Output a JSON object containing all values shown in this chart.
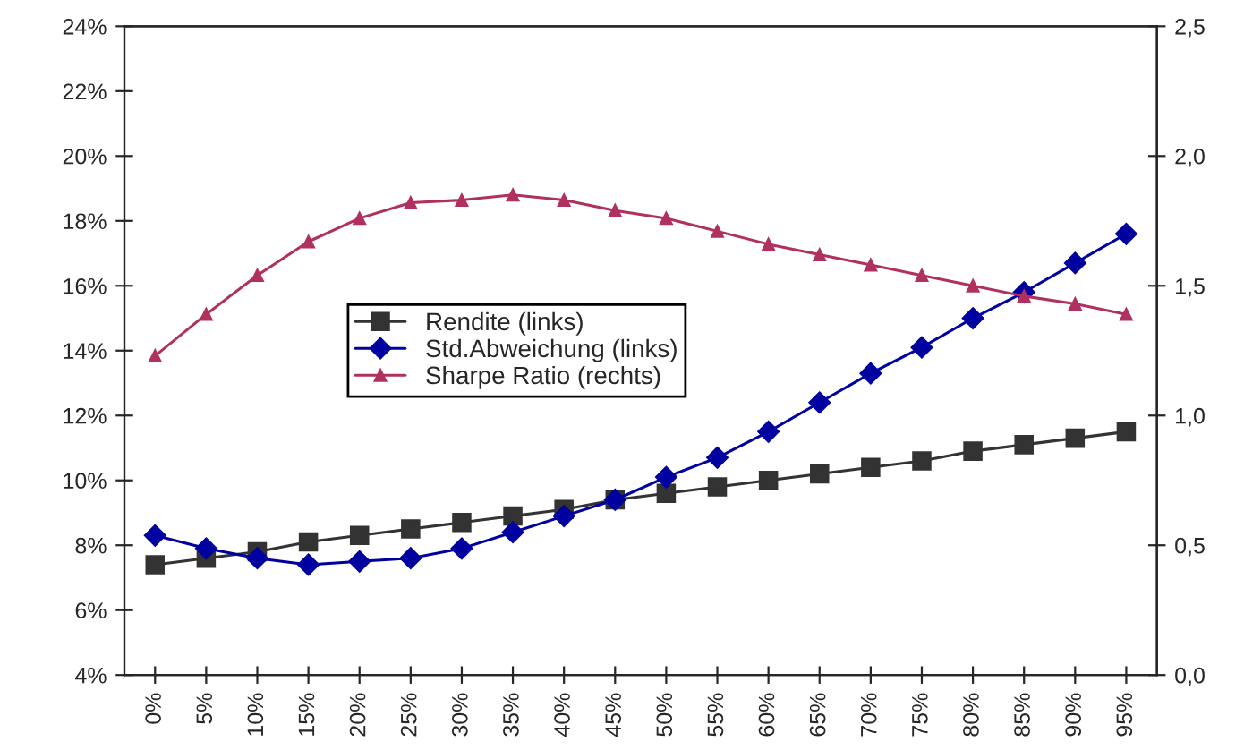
{
  "chart_data": {
    "type": "line",
    "categories": [
      "0%",
      "5%",
      "10%",
      "15%",
      "20%",
      "25%",
      "30%",
      "35%",
      "40%",
      "45%",
      "50%",
      "55%",
      "60%",
      "65%",
      "70%",
      "75%",
      "80%",
      "85%",
      "90%",
      "95%"
    ],
    "series": [
      {
        "name": "Rendite (links)",
        "color": "#333333",
        "marker": "square",
        "values": [
          7.4,
          7.6,
          7.8,
          8.1,
          8.3,
          8.5,
          8.7,
          8.9,
          9.1,
          9.4,
          9.6,
          9.8,
          10.0,
          10.2,
          10.4,
          10.6,
          10.9,
          11.1,
          11.3,
          11.5
        ]
      },
      {
        "name": "Std.Abweichung (links)",
        "color": "#0000a0",
        "marker": "diamond",
        "values": [
          8.3,
          7.9,
          7.6,
          7.4,
          7.5,
          7.6,
          7.9,
          8.4,
          8.9,
          9.4,
          10.1,
          10.7,
          11.5,
          12.4,
          13.3,
          14.1,
          15.0,
          15.8,
          16.7,
          17.6
        ]
      },
      {
        "name": "Sharpe Ratio (rechts)",
        "color": "#b03060",
        "marker": "triangle",
        "axis": "y2",
        "values": [
          1.23,
          1.39,
          1.54,
          1.67,
          1.76,
          1.82,
          1.83,
          1.85,
          1.83,
          1.79,
          1.76,
          1.71,
          1.66,
          1.62,
          1.58,
          1.54,
          1.5,
          1.46,
          1.43,
          1.39
        ]
      }
    ],
    "ylim": [
      4,
      24
    ],
    "yticks": [
      {
        "value": 4,
        "label": "4%"
      },
      {
        "value": 6,
        "label": "6%"
      },
      {
        "value": 8,
        "label": "8%"
      },
      {
        "value": 10,
        "label": "10%"
      },
      {
        "value": 12,
        "label": "12%"
      },
      {
        "value": 14,
        "label": "14%"
      },
      {
        "value": 16,
        "label": "16%"
      },
      {
        "value": 18,
        "label": "18%"
      },
      {
        "value": 20,
        "label": "20%"
      },
      {
        "value": 22,
        "label": "22%"
      },
      {
        "value": 24,
        "label": "24%"
      }
    ],
    "y2lim": [
      0,
      2.5
    ],
    "y2ticks": [
      {
        "value": 0,
        "label": "0,0"
      },
      {
        "value": 0.5,
        "label": "0,5"
      },
      {
        "value": 1.0,
        "label": "1,0"
      },
      {
        "value": 1.5,
        "label": "1,5"
      },
      {
        "value": 2.0,
        "label": "2,0"
      },
      {
        "value": 2.5,
        "label": "2,5"
      }
    ],
    "legend": "center",
    "grid": false,
    "line_style": "solid"
  }
}
